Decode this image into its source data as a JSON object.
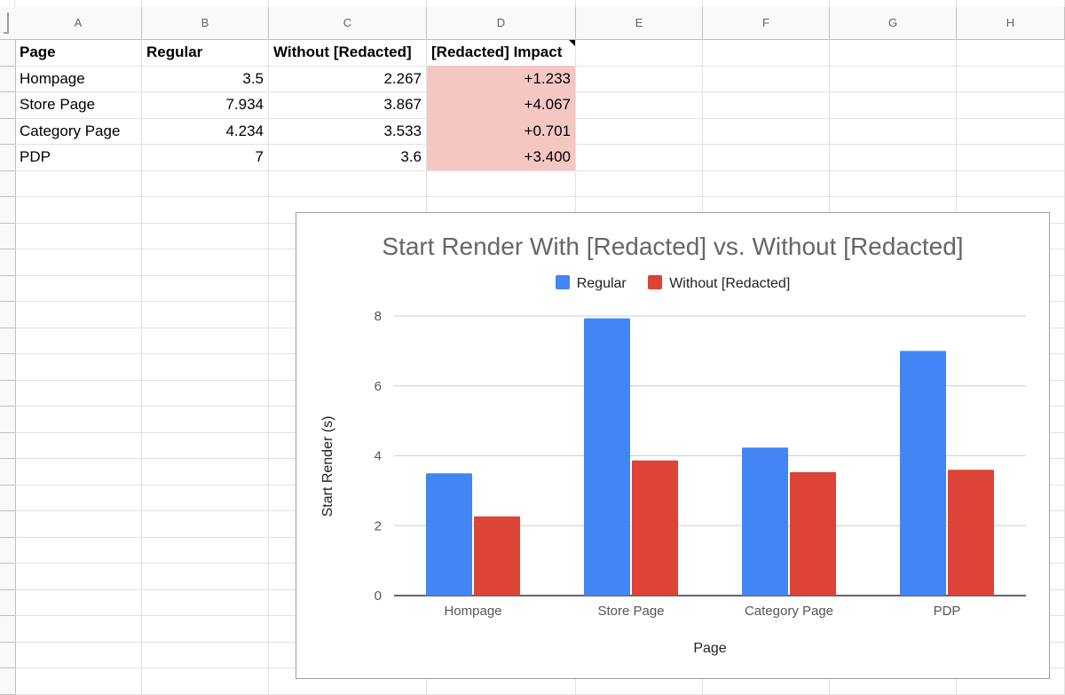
{
  "columns": [
    "A",
    "B",
    "C",
    "D",
    "E",
    "F",
    "G",
    "H"
  ],
  "table": {
    "headers": [
      "Page",
      "Regular",
      "Without [Redacted]",
      "[Redacted] Impact"
    ],
    "rows": [
      [
        "Hompage",
        "3.5",
        "2.267",
        "+1.233"
      ],
      [
        "Store Page",
        "7.934",
        "3.867",
        "+4.067"
      ],
      [
        "Category Page",
        "4.234",
        "3.533",
        "+0.701"
      ],
      [
        "PDP",
        "7",
        "3.6",
        "+3.400"
      ]
    ]
  },
  "colors": {
    "highlight": "#f4c7c3",
    "regular": "#4285f4",
    "without": "#db4437"
  },
  "chart_data": {
    "type": "bar",
    "title": "Start Render With [Redacted] vs. Without [Redacted]",
    "xlabel": "Page",
    "ylabel": "Start Render (s)",
    "categories": [
      "Hompage",
      "Store Page",
      "Category Page",
      "PDP"
    ],
    "series": [
      {
        "name": "Regular",
        "values": [
          3.5,
          7.934,
          4.234,
          7
        ]
      },
      {
        "name": "Without [Redacted]",
        "values": [
          2.267,
          3.867,
          3.533,
          3.6
        ]
      }
    ],
    "ylim": [
      0,
      8
    ],
    "yticks": [
      "0",
      "2",
      "4",
      "6",
      "8"
    ],
    "legend_position": "top",
    "grid": true
  }
}
